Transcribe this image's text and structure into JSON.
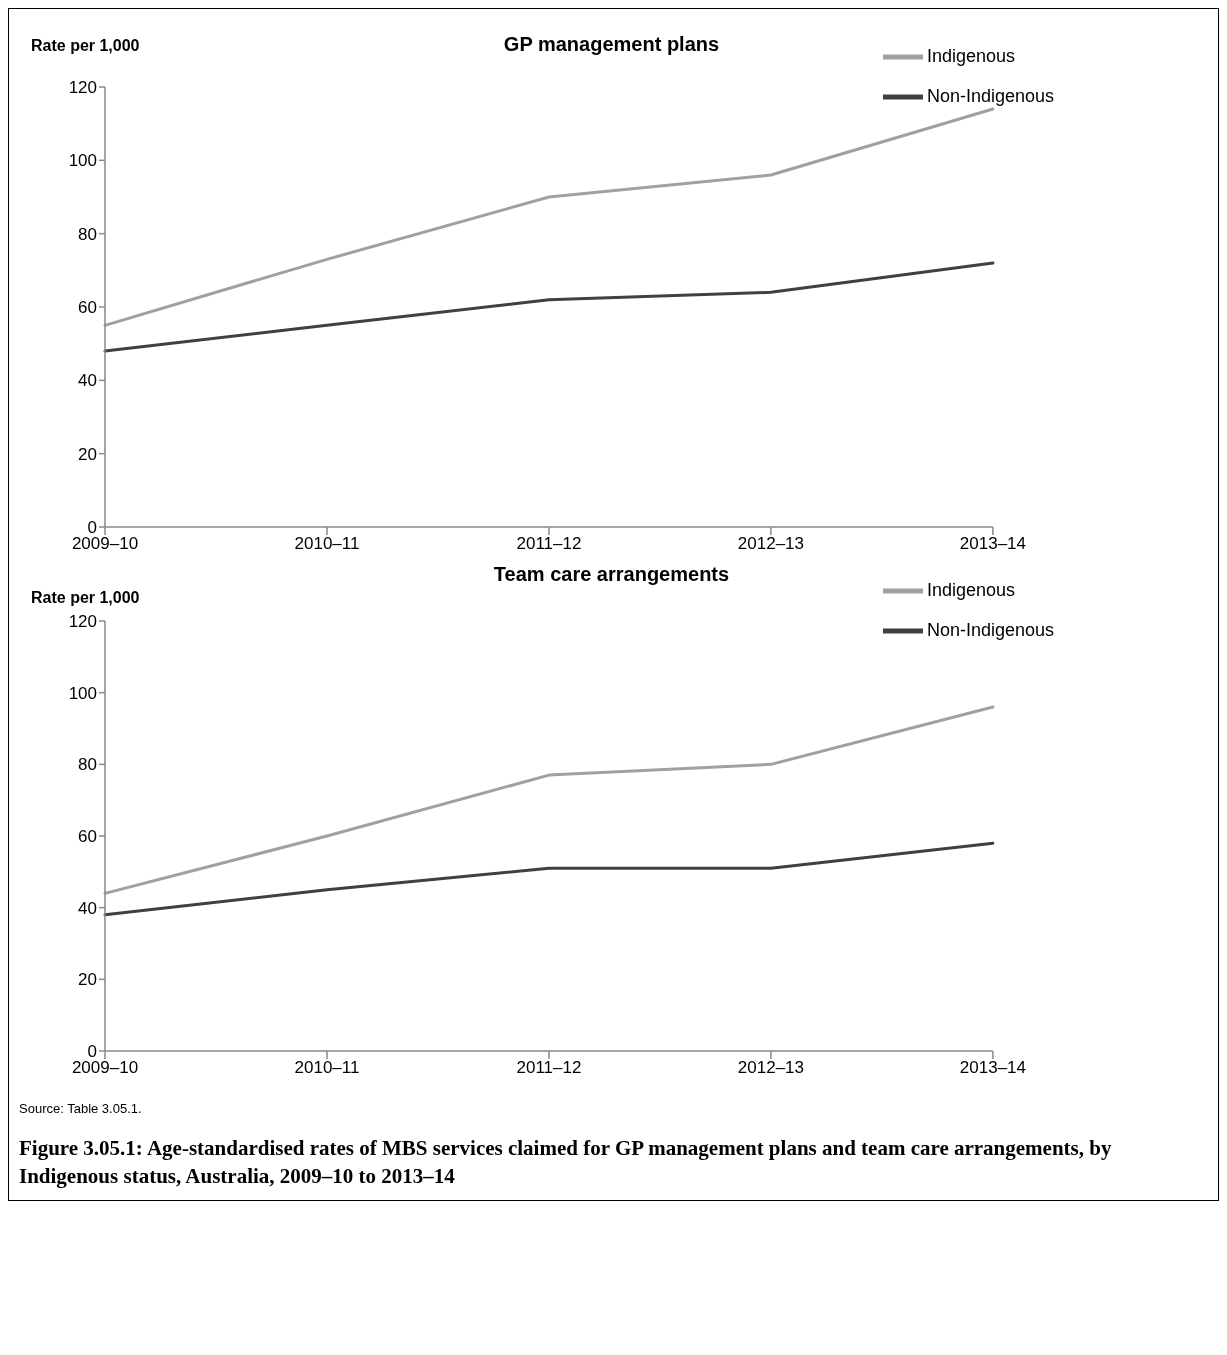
{
  "chart_data": [
    {
      "type": "line",
      "title": "GP management plans",
      "ylabel": "Rate per 1,000",
      "categories": [
        "2009–10",
        "2010–11",
        "2011–12",
        "2012–13",
        "2013–14"
      ],
      "ylim": [
        0,
        120
      ],
      "yticks": [
        0,
        20,
        40,
        60,
        80,
        100,
        120
      ],
      "grid": false,
      "legend": "top right",
      "marker": "none",
      "line_style": "solid",
      "series": [
        {
          "name": "Indigenous",
          "color": "#a0a0a0",
          "values": [
            55,
            73,
            90,
            96,
            114
          ]
        },
        {
          "name": "Non-Indigenous",
          "color": "#404040",
          "values": [
            48,
            55,
            62,
            64,
            72
          ]
        }
      ]
    },
    {
      "type": "line",
      "title": "Team care arrangements",
      "ylabel": "Rate per 1,000",
      "categories": [
        "2009–10",
        "2010–11",
        "2011–12",
        "2012–13",
        "2013–14"
      ],
      "ylim": [
        0,
        120
      ],
      "yticks": [
        0,
        20,
        40,
        60,
        80,
        100,
        120
      ],
      "grid": false,
      "legend": "top right",
      "marker": "none",
      "line_style": "solid",
      "series": [
        {
          "name": "Indigenous",
          "color": "#a0a0a0",
          "values": [
            44,
            60,
            77,
            80,
            96
          ]
        },
        {
          "name": "Non-Indigenous",
          "color": "#404040",
          "values": [
            38,
            45,
            51,
            51,
            58
          ]
        }
      ],
      "annotations": [
        "Source: Table 3.05.1.",
        "Figure 3.05.1: Age-standardised rates of MBS services claimed for GP management plans and team care arrangements, by Indigenous status, Australia, 2009–10 to 2013–14"
      ]
    }
  ]
}
